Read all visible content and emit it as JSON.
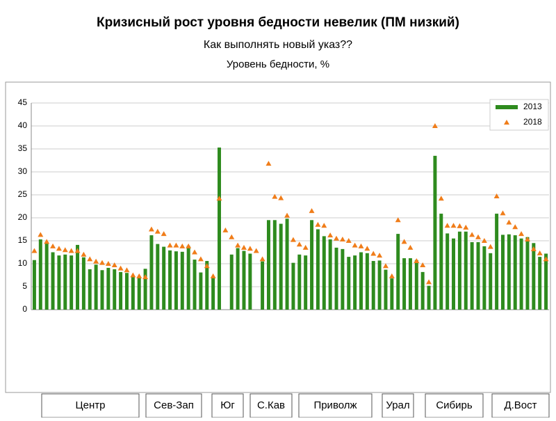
{
  "chart_data": {
    "type": "bar",
    "title": "Кризисный рост уровня бедности невелик (ПМ низкий)",
    "subtitle": "Как выполнять новый указ??",
    "ylabel": "Уровень бедности, %",
    "categories": [
      null,
      null,
      null,
      null,
      null,
      null,
      null,
      null,
      null,
      null,
      null,
      null,
      null,
      null,
      null,
      null,
      null,
      null,
      null,
      null,
      null,
      null,
      null,
      null,
      null,
      null,
      null,
      null,
      null,
      null,
      null,
      null,
      null,
      null,
      null,
      null,
      null,
      null,
      null,
      null,
      null,
      null,
      null,
      null,
      null,
      null,
      null,
      null,
      null,
      null,
      null,
      null,
      null,
      null,
      null,
      null,
      null,
      null,
      null,
      null,
      null,
      null,
      null,
      null,
      null,
      null,
      null,
      null,
      null,
      null,
      null,
      null,
      null,
      null,
      null,
      null,
      null,
      null,
      null,
      null,
      null,
      null,
      null,
      null
    ],
    "series": [
      {
        "name": "2013",
        "color": "#2e8b1e",
        "marker": "bar",
        "values": [
          10.8,
          15.3,
          14.5,
          12.5,
          11.8,
          12.0,
          11.8,
          14.1,
          11.4,
          8.8,
          9.8,
          8.6,
          9.1,
          8.8,
          8.2,
          8.0,
          7.3,
          7.2,
          8.9,
          16.2,
          14.3,
          13.7,
          12.9,
          12.7,
          12.6,
          13.9,
          10.9,
          8.1,
          10.6,
          7.0,
          35.3,
          null,
          12.0,
          13.4,
          12.8,
          12.2,
          null,
          10.5,
          19.5,
          19.5,
          18.7,
          19.8,
          10.2,
          12.0,
          11.8,
          19.5,
          17.5,
          16.0,
          15.3,
          13.5,
          13.2,
          11.5,
          11.8,
          12.5,
          12.3,
          10.6,
          10.7,
          8.7,
          6.8,
          16.5,
          11.2,
          11.2,
          10.8,
          8.2,
          5.2,
          33.5,
          20.9,
          16.6,
          15.5,
          17.0,
          17.0,
          14.7,
          14.7,
          13.8,
          12.3,
          20.9,
          16.3,
          16.4,
          16.2,
          15.5,
          15.8,
          14.5,
          11.5,
          12.2
        ]
      },
      {
        "name": "2018",
        "color": "#f07d1a",
        "marker": "triangle",
        "values": [
          12.8,
          16.3,
          14.8,
          13.8,
          13.3,
          13.0,
          12.8,
          12.8,
          12.0,
          11.0,
          10.5,
          10.2,
          10.0,
          9.7,
          9.0,
          8.6,
          7.5,
          7.3,
          7.1,
          17.5,
          17.0,
          16.5,
          14.0,
          14.0,
          13.8,
          13.8,
          12.5,
          11.0,
          9.5,
          7.3,
          24.2,
          17.3,
          15.8,
          14.0,
          13.5,
          13.3,
          12.8,
          11.0,
          31.8,
          24.6,
          24.3,
          20.5,
          15.2,
          14.2,
          13.5,
          21.5,
          18.5,
          18.3,
          16.2,
          15.5,
          15.3,
          15.0,
          14.0,
          13.8,
          13.3,
          12.2,
          11.8,
          9.5,
          7.3,
          19.5,
          14.8,
          13.5,
          10.6,
          9.7,
          6.0,
          40.0,
          24.2,
          18.3,
          18.3,
          18.2,
          17.9,
          16.3,
          15.8,
          15.0,
          13.7,
          24.7,
          21.0,
          19.0,
          18.0,
          16.5,
          15.3,
          13.2,
          12.3,
          11.0
        ]
      }
    ],
    "groups": [
      "Центр",
      "Сев-Зап",
      "Юг",
      "С.Кав",
      "Приволж",
      "Урал",
      "Сибирь",
      "Д.Вост"
    ],
    "ylim": [
      0,
      45
    ],
    "yticks": [
      0,
      5,
      10,
      15,
      20,
      25,
      30,
      35,
      40,
      45
    ],
    "grid": true,
    "legend": "upper right"
  }
}
